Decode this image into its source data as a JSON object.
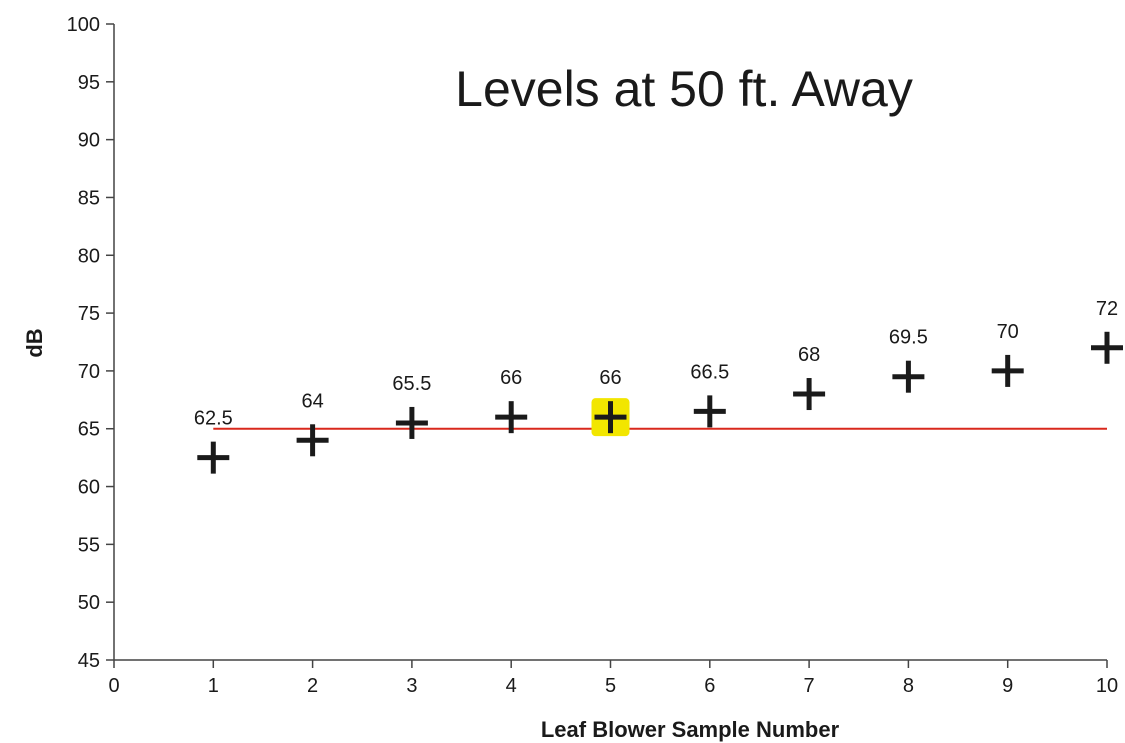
{
  "chart_data": {
    "type": "scatter",
    "title": "Levels at 50 ft. Away",
    "xlabel": "Leaf Blower Sample Number",
    "ylabel": "dB",
    "xlim": [
      0,
      10
    ],
    "ylim": [
      45,
      100
    ],
    "x_ticks": [
      0,
      1,
      2,
      3,
      4,
      5,
      6,
      7,
      8,
      9,
      10
    ],
    "y_ticks": [
      45,
      50,
      55,
      60,
      65,
      70,
      75,
      80,
      85,
      90,
      95,
      100
    ],
    "grid": false,
    "marker": "plus",
    "series": [
      {
        "x": [
          1,
          2,
          3,
          4,
          5,
          6,
          7,
          8,
          9,
          10
        ],
        "y": [
          62.5,
          64,
          65.5,
          66,
          66,
          66.5,
          68,
          69.5,
          70,
          72
        ],
        "data_labels": [
          "62.5",
          "64",
          "65.5",
          "66",
          "66",
          "66.5",
          "68",
          "69.5",
          "70",
          "72"
        ]
      }
    ],
    "reference_line": {
      "y": 65,
      "x_from": 1,
      "x_to": 10,
      "color": "#d9281c"
    },
    "highlight": {
      "index": 4,
      "color": "#f2e600"
    },
    "colors": {
      "marker": "#1a1a1a",
      "axis": "#444444"
    }
  }
}
